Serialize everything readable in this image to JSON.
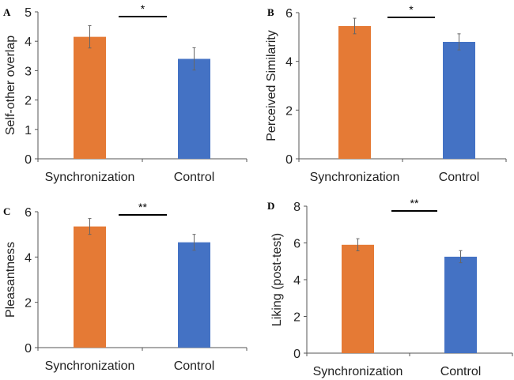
{
  "chart_data": [
    {
      "type": "bar",
      "panel": "A",
      "ylabel": "Self-other overlap",
      "categories": [
        "Synchronization",
        "Control"
      ],
      "values": [
        4.15,
        3.4
      ],
      "errors": [
        0.38,
        0.38
      ],
      "ylim": [
        0,
        5
      ],
      "yticks": [
        0,
        1,
        2,
        3,
        4,
        5
      ],
      "significance": "*",
      "colors": [
        "#E57A35",
        "#4472C4"
      ]
    },
    {
      "type": "bar",
      "panel": "B",
      "ylabel": "Perceived Similarity",
      "categories": [
        "Synchronization",
        "Control"
      ],
      "values": [
        5.45,
        4.8
      ],
      "errors": [
        0.32,
        0.33
      ],
      "ylim": [
        0,
        6
      ],
      "yticks": [
        0,
        2,
        4,
        6
      ],
      "significance": "*",
      "colors": [
        "#E57A35",
        "#4472C4"
      ]
    },
    {
      "type": "bar",
      "panel": "C",
      "ylabel": "Pleasantness",
      "categories": [
        "Synchronization",
        "Control"
      ],
      "values": [
        5.35,
        4.65
      ],
      "errors": [
        0.35,
        0.35
      ],
      "ylim": [
        0,
        6
      ],
      "yticks": [
        0,
        2,
        4,
        6
      ],
      "significance": "**",
      "colors": [
        "#E57A35",
        "#4472C4"
      ]
    },
    {
      "type": "bar",
      "panel": "D",
      "ylabel": "Liking (post-test)",
      "categories": [
        "Synchronization",
        "Control"
      ],
      "values": [
        5.9,
        5.25
      ],
      "errors": [
        0.33,
        0.33
      ],
      "ylim": [
        0,
        8
      ],
      "yticks": [
        0,
        2,
        4,
        6,
        8
      ],
      "significance": "**",
      "colors": [
        "#E57A35",
        "#4472C4"
      ]
    }
  ]
}
